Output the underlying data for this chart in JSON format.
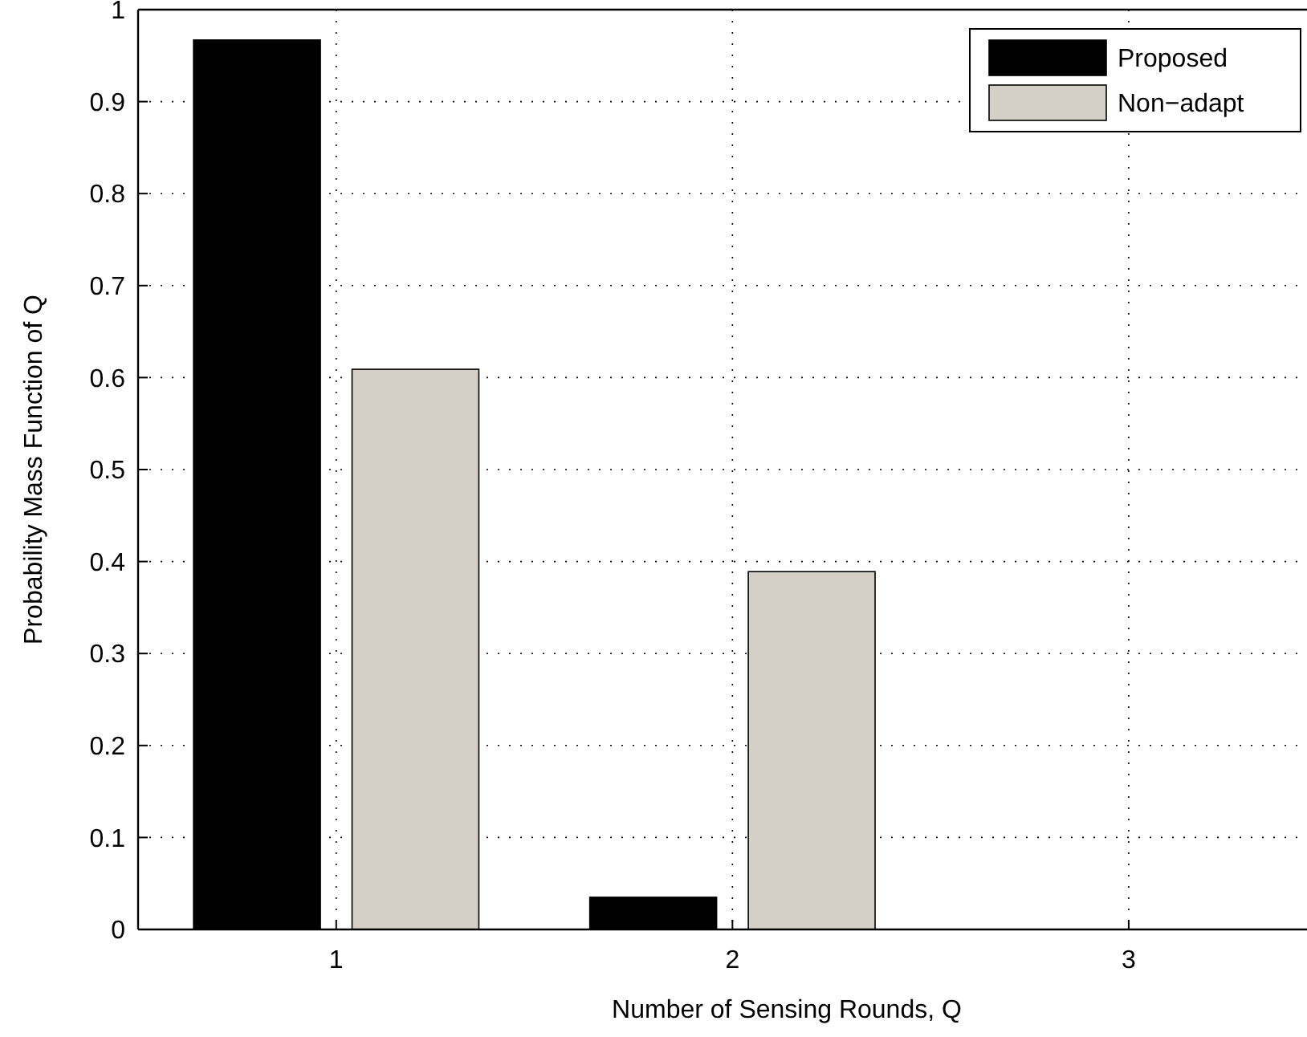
{
  "chart_data": {
    "type": "bar",
    "xlabel": "Number of Sensing Rounds, Q",
    "ylabel": "Probability Mass Function of Q",
    "x": [
      1,
      2,
      3
    ],
    "series": [
      {
        "name": "Proposed",
        "color": "#000000",
        "values": [
          0.967,
          0.035,
          0
        ]
      },
      {
        "name": "Non−adapt",
        "color": "#d4d0c8",
        "values": [
          0.609,
          0.389,
          0
        ]
      }
    ],
    "xlim": [
      0.5,
      3.45
    ],
    "xticks": [
      1,
      2,
      3
    ],
    "ylim": [
      0,
      1
    ],
    "yticks": [
      0,
      0.1,
      0.2,
      0.3,
      0.4,
      0.5,
      0.6,
      0.7,
      0.8,
      0.9,
      1
    ],
    "grid": true,
    "legend": "top right"
  }
}
